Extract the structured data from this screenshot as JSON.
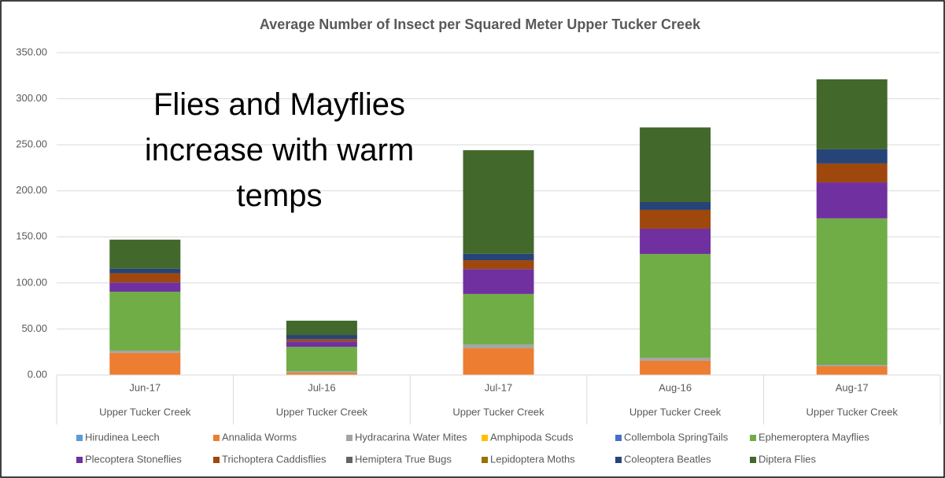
{
  "chart_data": {
    "type": "stacked_bar",
    "title": "Average Number of Insect per Squared Meter Upper Tucker Creek",
    "annotation": "Flies and Mayflies increase with warm temps",
    "categories": [
      "Jun-17",
      "Jul-16",
      "Jul-17",
      "Aug-16",
      "Aug-17"
    ],
    "category_groups": [
      "Upper Tucker Creek",
      "Upper Tucker Creek",
      "Upper Tucker Creek",
      "Upper Tucker Creek",
      "Upper Tucker Creek"
    ],
    "ylim": [
      0,
      350
    ],
    "yticks": [
      {
        "value": 0,
        "label": "0.00"
      },
      {
        "value": 50,
        "label": "50.00"
      },
      {
        "value": 100,
        "label": "100.00"
      },
      {
        "value": 150,
        "label": "150.00"
      },
      {
        "value": 200,
        "label": "200.00"
      },
      {
        "value": 250,
        "label": "250.00"
      },
      {
        "value": 300,
        "label": "300.00"
      },
      {
        "value": 350,
        "label": "350.00"
      }
    ],
    "grid": true,
    "legend": "bottom",
    "series": [
      {
        "name": "Hirudinea Leech",
        "color": "#5b9bd5",
        "values": [
          0,
          0,
          0,
          0,
          0
        ]
      },
      {
        "name": "Annalida Worms",
        "color": "#ed7d31",
        "values": [
          24,
          2.5,
          29,
          15.4,
          9.4
        ]
      },
      {
        "name": "Hydracarina Water Mites",
        "color": "#a5a5a5",
        "values": [
          2.5,
          1.5,
          4,
          3.4,
          1.7
        ]
      },
      {
        "name": "Amphipoda Scuds",
        "color": "#ffc000",
        "values": [
          0,
          0,
          0,
          0,
          0
        ]
      },
      {
        "name": "Collembola SpringTails",
        "color": "#4472c4",
        "values": [
          0,
          0,
          0,
          0,
          0
        ]
      },
      {
        "name": "Ephemeroptera Mayflies",
        "color": "#70ad47",
        "values": [
          64,
          26.5,
          55,
          112.7,
          159
        ]
      },
      {
        "name": "Plecoptera Stoneflies",
        "color": "#7030a0",
        "values": [
          10,
          6,
          27,
          27.3,
          39
        ]
      },
      {
        "name": "Trichoptera Caddisflies",
        "color": "#9e480e",
        "values": [
          10,
          2.5,
          9.6,
          20.5,
          20.6
        ]
      },
      {
        "name": "Hemiptera True Bugs",
        "color": "#636363",
        "values": [
          0,
          0,
          0,
          0,
          0
        ]
      },
      {
        "name": "Lepidoptera Moths",
        "color": "#997300",
        "values": [
          0,
          0,
          0,
          0,
          0
        ]
      },
      {
        "name": "Coleoptera Beatles",
        "color": "#264478",
        "values": [
          5,
          4.5,
          7,
          8.5,
          15.4
        ]
      },
      {
        "name": "Diptera Flies",
        "color": "#43682b",
        "values": [
          31.5,
          15.5,
          112.5,
          81,
          76
        ]
      }
    ]
  }
}
